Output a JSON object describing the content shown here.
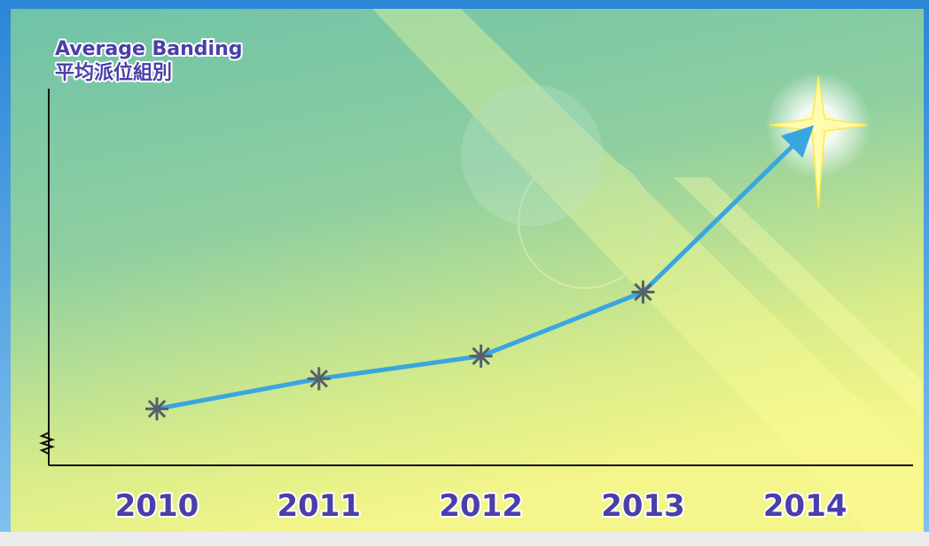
{
  "chart_data": {
    "type": "line",
    "y_label": [
      "Average Banding",
      "平均派位組別"
    ],
    "categories": [
      "2010",
      "2011",
      "2012",
      "2013",
      "2014"
    ],
    "series": [
      {
        "color": "#3aa6e0",
        "values": [
          1.5,
          2.3,
          2.9,
          4.6,
          8.8
        ]
      }
    ],
    "ylim": [
      0,
      10
    ],
    "axis_break": true
  }
}
